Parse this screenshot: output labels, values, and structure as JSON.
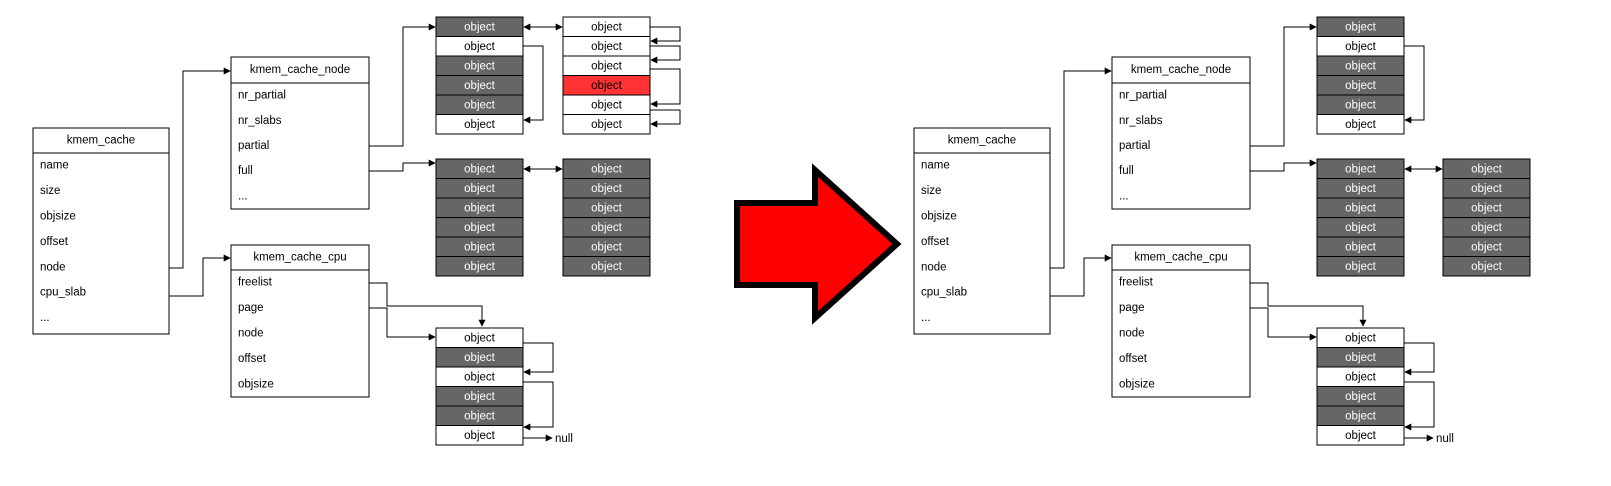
{
  "colors": {
    "filled": "#666666",
    "empty": "#ffffff",
    "highlight": "#ff3333",
    "line": "#000000",
    "arrow_fill": "#ff0000"
  },
  "left": {
    "kmem_cache": {
      "title": "kmem_cache",
      "fields": [
        "name",
        "size",
        "objsize",
        "offset",
        "node",
        "cpu_slab",
        "..."
      ]
    },
    "kmem_cache_node": {
      "title": "kmem_cache_node",
      "fields": [
        "nr_partial",
        "nr_slabs",
        "partial",
        "full",
        "..."
      ]
    },
    "kmem_cache_cpu": {
      "title": "kmem_cache_cpu",
      "fields": [
        "freelist",
        "page",
        "node",
        "offset",
        "objsize"
      ]
    },
    "partial_slab_a": [
      "filled",
      "empty",
      "filled",
      "filled",
      "filled",
      "empty"
    ],
    "partial_slab_b": [
      "empty",
      "empty",
      "empty",
      "highlight",
      "empty",
      "empty"
    ],
    "full_slab_a": [
      "filled",
      "filled",
      "filled",
      "filled",
      "filled",
      "filled"
    ],
    "full_slab_b": [
      "filled",
      "filled",
      "filled",
      "filled",
      "filled",
      "filled"
    ],
    "cpu_slab": [
      "empty",
      "filled",
      "empty",
      "filled",
      "filled",
      "empty"
    ]
  },
  "right": {
    "kmem_cache": {
      "title": "kmem_cache",
      "fields": [
        "name",
        "size",
        "objsize",
        "offset",
        "node",
        "cpu_slab",
        "..."
      ]
    },
    "kmem_cache_node": {
      "title": "kmem_cache_node",
      "fields": [
        "nr_partial",
        "nr_slabs",
        "partial",
        "full",
        "..."
      ]
    },
    "kmem_cache_cpu": {
      "title": "kmem_cache_cpu",
      "fields": [
        "freelist",
        "page",
        "node",
        "offset",
        "objsize"
      ]
    },
    "partial_slab_a": [
      "filled",
      "empty",
      "filled",
      "filled",
      "filled",
      "empty"
    ],
    "full_slab_a": [
      "filled",
      "filled",
      "filled",
      "filled",
      "filled",
      "filled"
    ],
    "full_slab_b": [
      "filled",
      "filled",
      "filled",
      "filled",
      "filled",
      "filled"
    ],
    "cpu_slab": [
      "empty",
      "filled",
      "empty",
      "filled",
      "filled",
      "empty"
    ]
  },
  "object_label": "object",
  "null_label": "null"
}
